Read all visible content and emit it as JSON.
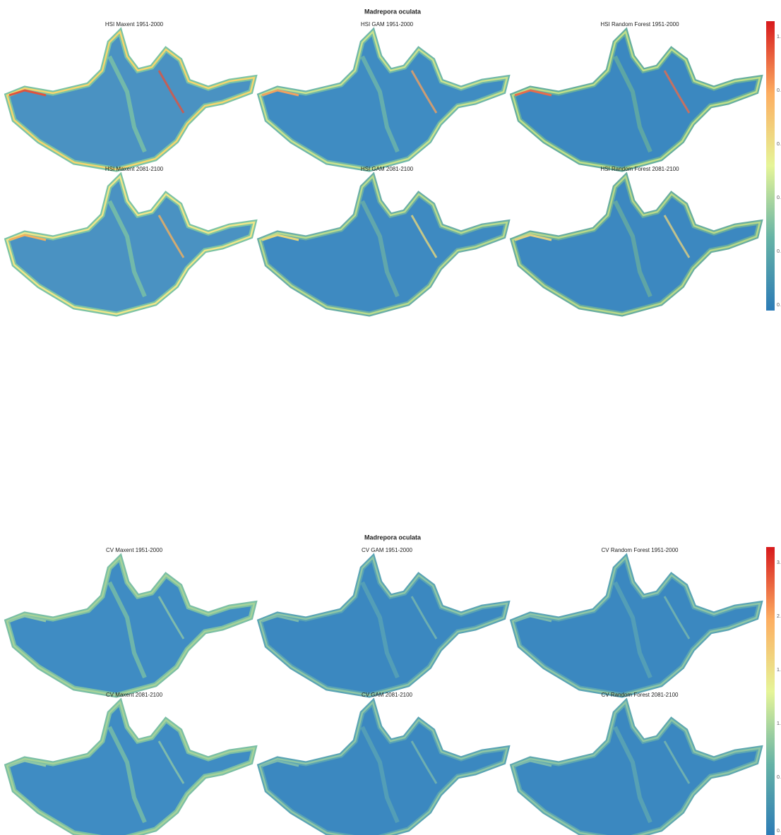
{
  "figures": [
    {
      "title": "Madrepora oculata",
      "panels": [
        {
          "title": "HSI Maxent 1951-2000"
        },
        {
          "title": "HSI GAM 1951-2000"
        },
        {
          "title": "HSI Random Forest 1951-2000"
        },
        {
          "title": "HSI Maxent 2081-2100"
        },
        {
          "title": "HSI GAM 2081-2100"
        },
        {
          "title": "HSI Random Forest 2081-2100"
        }
      ],
      "colorbar": {
        "labels": [
          "1.",
          "0.",
          "0.",
          "0.",
          "0.",
          "0."
        ]
      }
    },
    {
      "title": "Madrepora oculata",
      "panels": [
        {
          "title": "CV Maxent 1951-2000"
        },
        {
          "title": "CV GAM 1951-2000"
        },
        {
          "title": "CV Random Forest 1951-2000"
        },
        {
          "title": "CV Maxent 2081-2100"
        },
        {
          "title": "CV GAM 2081-2100"
        },
        {
          "title": "CV Random Forest 2081-2100"
        }
      ],
      "colorbar": {
        "labels": [
          "3.",
          "2.",
          "1.",
          "1.",
          "0.",
          "0."
        ]
      }
    }
  ]
}
